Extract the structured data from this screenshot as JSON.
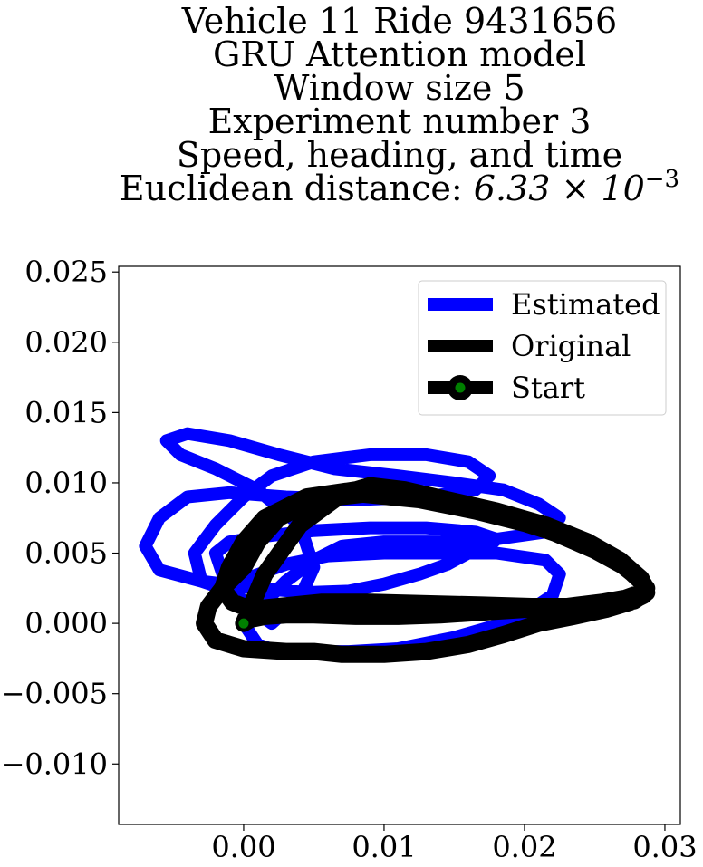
{
  "chart_data": {
    "type": "line",
    "title_lines": [
      "Vehicle 11 Ride 9431656",
      "GRU Attention model",
      "Window size 5",
      "Experiment number 3",
      "Speed, heading, and time"
    ],
    "title_last_prefix": "Euclidean distance: ",
    "title_last_value": "6.33 × 10",
    "title_last_exponent": "−3",
    "xlabel": "",
    "ylabel": "",
    "xlim": [
      -0.0089,
      0.0311
    ],
    "ylim": [
      -0.0143,
      0.0254
    ],
    "xticks": [
      0.0,
      0.01,
      0.02,
      0.03
    ],
    "xtick_labels": [
      "0.00",
      "0.01",
      "0.02",
      "0.03"
    ],
    "yticks": [
      -0.01,
      -0.005,
      0.0,
      0.005,
      0.01,
      0.015,
      0.02,
      0.025
    ],
    "ytick_labels": [
      "−0.010",
      "−0.005",
      "0.000",
      "0.005",
      "0.010",
      "0.015",
      "0.020",
      "0.025"
    ],
    "grid": false,
    "legend_position": "top-right",
    "legend": [
      "Estimated",
      "Original",
      "Start"
    ],
    "colors": {
      "Estimated": "#0000ff",
      "Original": "#000000",
      "Start_marker_face": "#008000",
      "Start_marker_edge": "#000000"
    },
    "series": [
      {
        "name": "Estimated",
        "x": [
          0.0,
          0.001,
          0.0025,
          0.0045,
          0.0075,
          0.011,
          0.015,
          0.0185,
          0.0205,
          0.022,
          0.0225,
          0.0215,
          0.018,
          0.014,
          0.01,
          0.006,
          0.003,
          0.0005,
          -0.0015,
          -0.003,
          -0.0035,
          -0.002,
          0.0,
          0.002,
          0.005,
          0.009,
          0.013,
          0.016,
          0.0175,
          0.0165,
          0.013,
          0.008,
          0.003,
          -0.001,
          -0.004,
          -0.006,
          -0.007,
          -0.006,
          -0.003,
          0.001,
          0.0045,
          0.0075,
          0.01,
          0.0125,
          0.0145,
          0.016,
          0.0175,
          0.018,
          0.0165,
          0.013,
          0.009,
          0.005,
          0.0015,
          -0.001,
          -0.002,
          -0.0015,
          0.0,
          0.002,
          0.004,
          0.005,
          0.004,
          0.001,
          -0.002,
          -0.0045,
          -0.0055,
          -0.004,
          -0.001,
          0.0025,
          0.0065,
          0.011,
          0.015,
          0.0185,
          0.021,
          0.0225,
          0.0215,
          0.018,
          0.014,
          0.01,
          0.007,
          0.005,
          0.003,
          0.0015,
          0.0005
        ],
        "y": [
          0.0,
          -0.0015,
          -0.002,
          -0.002,
          -0.002,
          -0.0018,
          -0.001,
          0.0,
          0.001,
          0.002,
          0.0035,
          0.0045,
          0.005,
          0.005,
          0.005,
          0.0048,
          0.0042,
          0.0033,
          0.0025,
          0.003,
          0.005,
          0.007,
          0.009,
          0.0105,
          0.0115,
          0.012,
          0.012,
          0.0115,
          0.0105,
          0.0095,
          0.009,
          0.0088,
          0.009,
          0.0093,
          0.009,
          0.0075,
          0.0055,
          0.0038,
          0.003,
          0.0025,
          0.0022,
          0.0023,
          0.0028,
          0.0035,
          0.0042,
          0.005,
          0.0055,
          0.006,
          0.0065,
          0.0068,
          0.0068,
          0.0066,
          0.0062,
          0.0058,
          0.005,
          0.0035,
          0.0015,
          0.0,
          0.0018,
          0.004,
          0.007,
          0.0095,
          0.011,
          0.012,
          0.013,
          0.0135,
          0.013,
          0.012,
          0.011,
          0.0105,
          0.01,
          0.0095,
          0.0085,
          0.0075,
          0.0065,
          0.006,
          0.0058,
          0.0058,
          0.0055,
          0.0045,
          0.003,
          0.0015,
          0.0005
        ]
      },
      {
        "name": "Original",
        "x": [
          0.0,
          0.0005,
          0.0015,
          0.003,
          0.005,
          0.008,
          0.011,
          0.014,
          0.017,
          0.02,
          0.023,
          0.0255,
          0.0272,
          0.0283,
          0.0287,
          0.028,
          0.0265,
          0.024,
          0.0205,
          0.0165,
          0.0125,
          0.0085,
          0.005,
          0.0025,
          0.001,
          0.0,
          -0.0015,
          -0.0025,
          -0.0028,
          -0.002,
          0.0,
          0.003,
          0.005,
          0.007,
          0.01,
          0.013,
          0.016,
          0.0185,
          0.021,
          0.0235,
          0.0258,
          0.0275,
          0.0285,
          0.0285,
          0.0272,
          0.025,
          0.022,
          0.0185,
          0.015,
          0.0115,
          0.008,
          0.0045,
          0.0015,
          0.0,
          -0.001,
          -0.0015,
          -0.0008,
          0.0005,
          0.0025,
          0.0055,
          0.009,
          0.013,
          0.017,
          0.0205,
          0.0235,
          0.026,
          0.0278,
          0.0287,
          0.0283,
          0.0268,
          0.0245,
          0.0215,
          0.018,
          0.0145,
          0.0115,
          0.009,
          0.007,
          0.004,
          0.0015,
          0.0
        ],
        "y": [
          0.0,
          0.0003,
          0.0005,
          0.0006,
          0.0006,
          0.0005,
          0.0005,
          0.0006,
          0.0008,
          0.001,
          0.0012,
          0.0015,
          0.0018,
          0.0022,
          0.0025,
          0.0033,
          0.0045,
          0.0058,
          0.007,
          0.008,
          0.0088,
          0.0092,
          0.0088,
          0.0075,
          0.0058,
          0.004,
          0.0025,
          0.0012,
          0.0,
          -0.0012,
          -0.0018,
          -0.002,
          -0.002,
          -0.0022,
          -0.0022,
          -0.002,
          -0.0015,
          -0.0008,
          0.0,
          0.0005,
          0.001,
          0.0015,
          0.002,
          0.0028,
          0.004,
          0.0052,
          0.0065,
          0.0076,
          0.0085,
          0.0092,
          0.0095,
          0.009,
          0.0075,
          0.0058,
          0.004,
          0.0025,
          0.0015,
          0.001,
          0.0012,
          0.0015,
          0.0015,
          0.0014,
          0.0013,
          0.0012,
          0.0012,
          0.0013,
          0.0016,
          0.0022,
          0.0032,
          0.0045,
          0.0058,
          0.007,
          0.008,
          0.0088,
          0.0095,
          0.0098,
          0.0092,
          0.007,
          0.0035,
          0.0
        ]
      },
      {
        "name": "Start",
        "x": [
          0.0
        ],
        "y": [
          0.0
        ]
      }
    ]
  }
}
